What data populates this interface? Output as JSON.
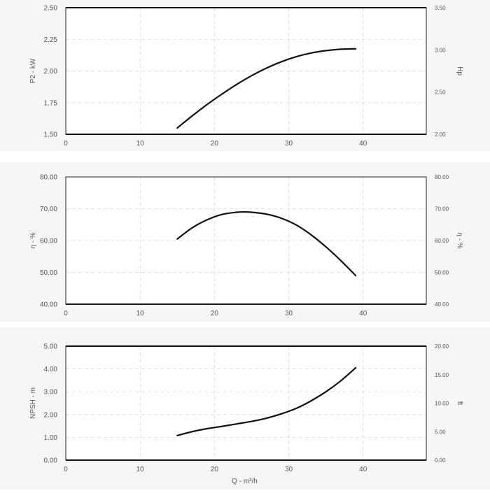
{
  "chart_data": [
    {
      "type": "line",
      "xlabel": "",
      "ylabel": "P2 - kW",
      "y2label": "Hp",
      "xlim": [
        0,
        48.5
      ],
      "ylim": [
        1.5,
        2.5
      ],
      "y2lim": [
        2.0,
        3.5
      ],
      "x_ticks": [
        "0",
        "10",
        "20",
        "30",
        "40"
      ],
      "y_ticks": [
        "1.50",
        "1.75",
        "2.00",
        "2.25",
        "2.50"
      ],
      "y2_ticks": [
        "2.00",
        "2.50",
        "3.00",
        "3.50"
      ],
      "grid": true,
      "series": [
        {
          "x": [
            15,
            17,
            19,
            21,
            23,
            25,
            27,
            29,
            31,
            33,
            35,
            37,
            39
          ],
          "y": [
            1.55,
            1.645,
            1.735,
            1.817,
            1.894,
            1.963,
            2.023,
            2.073,
            2.113,
            2.142,
            2.161,
            2.172,
            2.175
          ]
        }
      ]
    },
    {
      "type": "line",
      "xlabel": "",
      "ylabel": "η - %",
      "y2label": "η - %",
      "xlim": [
        0,
        48.5
      ],
      "ylim": [
        40,
        80
      ],
      "y2lim": [
        40,
        80
      ],
      "x_ticks": [
        "0",
        "10",
        "20",
        "30",
        "40"
      ],
      "y_ticks": [
        "40.00",
        "50.00",
        "60.00",
        "70.00",
        "80.00"
      ],
      "y2_ticks": [
        "40.00",
        "50.00",
        "60.00",
        "70.00",
        "80.00"
      ],
      "grid": true,
      "series": [
        {
          "x": [
            15,
            17,
            19,
            21,
            23,
            24,
            25,
            27,
            29,
            31,
            33,
            35,
            37,
            39
          ],
          "y": [
            60.5,
            64.0,
            66.5,
            68.2,
            68.9,
            69.0,
            68.9,
            68.3,
            67.0,
            64.9,
            61.8,
            58.0,
            53.7,
            49.0
          ]
        }
      ]
    },
    {
      "type": "line",
      "xlabel": "Q - m³/h",
      "ylabel": "NPSH - m",
      "y2label": "ft",
      "xlim": [
        0,
        48.5
      ],
      "ylim": [
        0,
        5
      ],
      "y2lim": [
        0,
        20
      ],
      "x_ticks": [
        "0",
        "10",
        "20",
        "30",
        "40"
      ],
      "y_ticks": [
        "0.00",
        "1.00",
        "2.00",
        "3.00",
        "4.00",
        "5.00"
      ],
      "y2_ticks": [
        "0.00",
        "5.00",
        "10.00",
        "15.00",
        "20.00"
      ],
      "grid": true,
      "series": [
        {
          "x": [
            15,
            17,
            19,
            21,
            23,
            25,
            27,
            29,
            31,
            33,
            35,
            37,
            39
          ],
          "y": [
            1.08,
            1.25,
            1.38,
            1.48,
            1.59,
            1.7,
            1.84,
            2.03,
            2.27,
            2.6,
            3.0,
            3.48,
            4.05
          ]
        }
      ]
    }
  ]
}
